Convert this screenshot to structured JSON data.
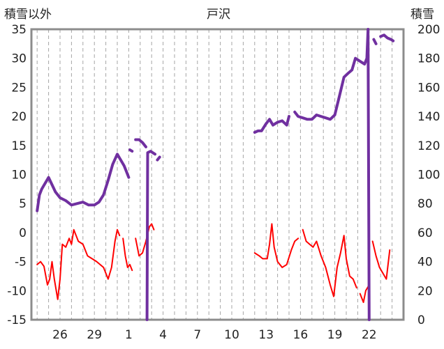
{
  "header": {
    "left_axis_title": "積雪以外",
    "title": "戸沢",
    "right_axis_title": "積雪"
  },
  "chart_data": {
    "type": "line",
    "title": "戸沢",
    "ylabel_left": "積雪以外",
    "ylabel_right": "積雪",
    "x_ticks": [
      "26",
      "29",
      "1",
      "4",
      "7",
      "10",
      "13",
      "16",
      "19",
      "22"
    ],
    "ylim_left": [
      -15,
      35
    ],
    "yticks_left": [
      "35",
      "30",
      "25",
      "20",
      "15",
      "10",
      "5",
      "0",
      "-5",
      "-10",
      "-15"
    ],
    "ylim_right": [
      0,
      200
    ],
    "yticks_right": [
      "200",
      "180",
      "160",
      "140",
      "120",
      "100",
      "80",
      "60",
      "40",
      "20",
      "0"
    ],
    "grid": "vertical dashed lines",
    "colors": {
      "snow_depth": "#7030a0",
      "other": "#ff0000"
    },
    "series": [
      {
        "axis": "right",
        "color": "#7030a0",
        "segments": [
          [
            [
              24.0,
              75
            ],
            [
              24.2,
              86
            ],
            [
              24.4,
              90
            ],
            [
              24.7,
              94
            ],
            [
              25.0,
              98
            ],
            [
              25.3,
              93
            ],
            [
              25.6,
              88
            ],
            [
              26.0,
              84
            ],
            [
              26.5,
              82
            ],
            [
              27.0,
              79
            ],
            [
              27.5,
              80
            ],
            [
              28.0,
              81
            ],
            [
              28.5,
              79
            ],
            [
              29.0,
              79
            ],
            [
              29.4,
              81
            ],
            [
              29.8,
              86
            ],
            [
              30.2,
              96
            ],
            [
              30.6,
              107
            ],
            [
              31.0,
              114
            ],
            [
              31.3,
              110
            ],
            [
              31.6,
              106
            ],
            [
              31.8,
              102
            ],
            [
              32.0,
              98
            ]
          ],
          [
            [
              32.1,
              117
            ],
            [
              32.3,
              116
            ]
          ],
          [
            [
              32.6,
              124
            ],
            [
              32.9,
              124
            ],
            [
              33.2,
              122
            ],
            [
              33.5,
              119
            ]
          ],
          [
            [
              33.6,
              0
            ],
            [
              33.65,
              115
            ],
            [
              33.9,
              116
            ],
            [
              34.1,
              115
            ],
            [
              34.3,
              114
            ]
          ],
          [
            [
              34.5,
              110
            ],
            [
              34.7,
              112
            ]
          ],
          [
            [
              43.0,
              129
            ],
            [
              43.3,
              130
            ],
            [
              43.6,
              130
            ],
            [
              44.0,
              135
            ],
            [
              44.3,
              138
            ],
            [
              44.6,
              134
            ],
            [
              45.0,
              136
            ],
            [
              45.4,
              137
            ],
            [
              45.8,
              134
            ],
            [
              46.0,
              140
            ]
          ],
          [
            [
              46.5,
              143
            ],
            [
              46.8,
              140
            ],
            [
              47.2,
              139
            ],
            [
              47.6,
              138
            ],
            [
              48.0,
              138
            ],
            [
              48.4,
              141
            ],
            [
              48.8,
              140
            ],
            [
              49.2,
              139
            ],
            [
              49.6,
              138
            ],
            [
              50.0,
              141
            ],
            [
              50.4,
              154
            ],
            [
              50.8,
              167
            ],
            [
              51.2,
              170
            ],
            [
              51.5,
              172
            ],
            [
              51.8,
              180
            ],
            [
              52.2,
              178
            ],
            [
              52.6,
              176
            ],
            [
              52.8,
              180
            ],
            [
              52.9,
              200
            ],
            [
              53.0,
              0
            ]
          ],
          [
            [
              53.4,
              193
            ],
            [
              53.6,
              190
            ]
          ],
          [
            [
              54.0,
              195
            ],
            [
              54.3,
              196
            ],
            [
              54.6,
              194
            ],
            [
              54.9,
              193
            ],
            [
              55.1,
              192
            ]
          ]
        ]
      },
      {
        "axis": "left",
        "color": "#ff0000",
        "segments": [
          [
            [
              24.0,
              -5.5
            ],
            [
              24.3,
              -5.0
            ],
            [
              24.6,
              -5.8
            ],
            [
              24.9,
              -9.0
            ],
            [
              25.1,
              -8.0
            ],
            [
              25.3,
              -5.0
            ],
            [
              25.5,
              -8.0
            ],
            [
              25.8,
              -11.5
            ],
            [
              26.0,
              -8.0
            ],
            [
              26.2,
              -2.0
            ],
            [
              26.5,
              -2.5
            ],
            [
              26.8,
              -1.0
            ],
            [
              27.0,
              -2.0
            ],
            [
              27.2,
              0.5
            ],
            [
              27.4,
              -0.5
            ],
            [
              27.6,
              -1.5
            ],
            [
              28.0,
              -2.0
            ],
            [
              28.4,
              -4.0
            ],
            [
              28.8,
              -4.5
            ],
            [
              29.2,
              -5.0
            ],
            [
              29.5,
              -5.5
            ],
            [
              29.8,
              -6.0
            ],
            [
              30.2,
              -8.0
            ],
            [
              30.5,
              -6.0
            ],
            [
              30.8,
              -1.5
            ],
            [
              31.0,
              0.5
            ],
            [
              31.2,
              -0.5
            ]
          ],
          [
            [
              31.5,
              -1.0
            ],
            [
              31.7,
              -4.0
            ],
            [
              31.9,
              -6.0
            ],
            [
              32.1,
              -5.5
            ],
            [
              32.3,
              -6.5
            ]
          ],
          [
            [
              32.6,
              -1.0
            ],
            [
              32.9,
              -4.0
            ],
            [
              33.2,
              -3.5
            ],
            [
              33.5,
              -1.5
            ],
            [
              33.8,
              1.0
            ],
            [
              34.0,
              1.5
            ],
            [
              34.2,
              0.5
            ]
          ],
          [
            [
              43.0,
              -3.5
            ],
            [
              43.4,
              -4.0
            ],
            [
              43.7,
              -4.5
            ],
            [
              44.1,
              -4.5
            ],
            [
              44.3,
              -2.0
            ],
            [
              44.5,
              1.5
            ],
            [
              44.7,
              -2.5
            ],
            [
              45.0,
              -5.0
            ],
            [
              45.4,
              -6.0
            ],
            [
              45.8,
              -5.5
            ],
            [
              46.2,
              -3.0
            ],
            [
              46.5,
              -1.5
            ],
            [
              46.8,
              -1.0
            ]
          ],
          [
            [
              47.2,
              0.5
            ],
            [
              47.5,
              -1.5
            ],
            [
              47.8,
              -2.0
            ],
            [
              48.1,
              -2.5
            ],
            [
              48.4,
              -1.5
            ],
            [
              48.8,
              -4.0
            ],
            [
              49.2,
              -6.0
            ],
            [
              49.6,
              -9.0
            ],
            [
              49.9,
              -11.0
            ],
            [
              50.2,
              -6.0
            ],
            [
              50.5,
              -3.5
            ],
            [
              50.8,
              -0.5
            ],
            [
              51.0,
              -4.5
            ],
            [
              51.3,
              -7.5
            ],
            [
              51.6,
              -8.0
            ],
            [
              51.9,
              -9.5
            ]
          ],
          [
            [
              52.2,
              -10.5
            ],
            [
              52.5,
              -12.0
            ],
            [
              52.7,
              -10.0
            ],
            [
              53.0,
              -9.0
            ]
          ],
          [
            [
              53.3,
              -1.5
            ],
            [
              53.6,
              -4.0
            ],
            [
              53.9,
              -6.0
            ],
            [
              54.2,
              -7.0
            ],
            [
              54.5,
              -8.0
            ],
            [
              54.8,
              -3.0
            ]
          ]
        ]
      }
    ]
  }
}
